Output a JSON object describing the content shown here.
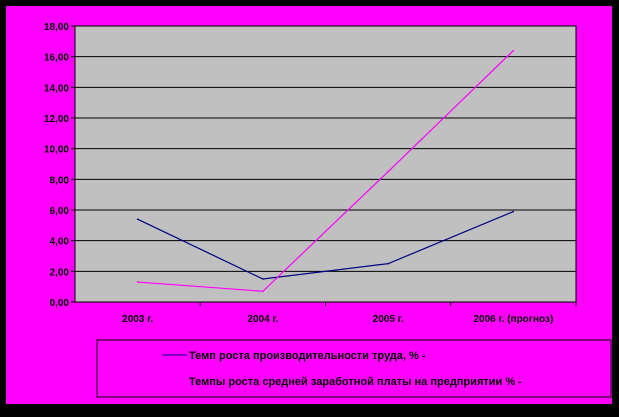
{
  "colors": {
    "frame": "#000000",
    "background": "#ff00ff",
    "plot_area": "#c0c0c0",
    "gridline": "#000000",
    "text": "#000000"
  },
  "chart_data": {
    "type": "line",
    "title": "",
    "xlabel": "",
    "ylabel": "",
    "ylim": [
      0,
      18
    ],
    "yticks": [
      "0,00",
      "2,00",
      "4,00",
      "6,00",
      "8,00",
      "10,00",
      "12,00",
      "14,00",
      "16,00",
      "18,00"
    ],
    "grid": true,
    "legend_position": "bottom",
    "categories": [
      "2003 г.",
      "2004 г.",
      "2005 г.",
      "2006 г. (прогноз)"
    ],
    "series": [
      {
        "name": "Темп роста производительности труда, % -",
        "color": "#000080",
        "values": [
          5.4,
          1.5,
          2.5,
          5.9
        ]
      },
      {
        "name": "Темпы роста средней заработной платы на предприятии % -",
        "color": "#ff00ff",
        "values": [
          1.3,
          0.7,
          8.5,
          16.4
        ]
      }
    ]
  }
}
